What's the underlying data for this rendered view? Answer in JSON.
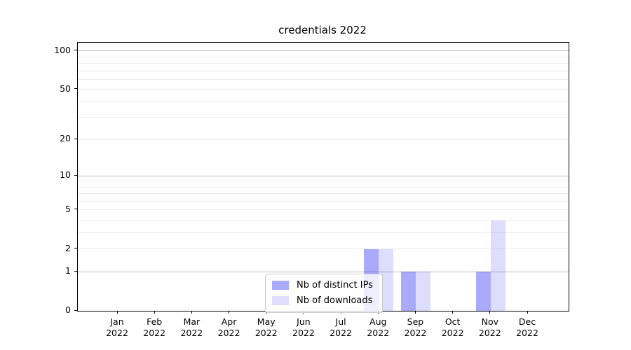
{
  "chart_data": {
    "type": "bar",
    "title": "credentials 2022",
    "categories": [
      "Jan",
      "Feb",
      "Mar",
      "Apr",
      "May",
      "Jun",
      "Jul",
      "Aug",
      "Sep",
      "Oct",
      "Nov",
      "Dec"
    ],
    "x_year": "2022",
    "series": [
      {
        "name": "Nb of distinct IPs",
        "color": "rgba(0,0,240,0.335)",
        "values": [
          0,
          0,
          0,
          0,
          0,
          0,
          0,
          2,
          1,
          0,
          1,
          0
        ]
      },
      {
        "name": "Nb of downloads",
        "color": "rgba(0,0,240,0.135)",
        "values": [
          0,
          0,
          0,
          0,
          0,
          0,
          0,
          2,
          1,
          0,
          4,
          0
        ]
      }
    ],
    "yticks": [
      0,
      1,
      2,
      5,
      10,
      20,
      50,
      100
    ],
    "yscale": "log1p",
    "ylim": [
      0,
      116
    ],
    "xlabel": "",
    "ylabel": "",
    "grid": true,
    "legend": {
      "position": "lower center",
      "entries": [
        "Nb of distinct IPs",
        "Nb of downloads"
      ]
    },
    "colors": {
      "major_grid": "#bdbdbd",
      "minor_grid": "#ececec",
      "axis": "#000000",
      "background": "#ffffff"
    }
  }
}
